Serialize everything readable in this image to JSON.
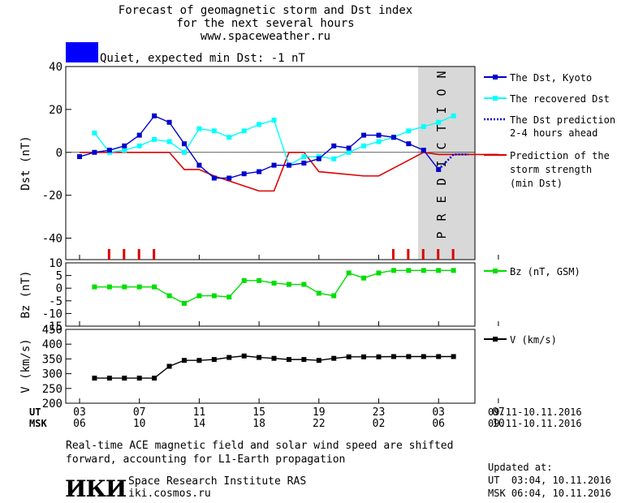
{
  "header": {
    "title_line1": "Forecast of geomagnetic storm and Dst index",
    "title_line2": "for the next several hours",
    "site": "www.spaceweather.ru",
    "status": "Quiet, expected min Dst: -1 nT",
    "status_color": "#0000ff"
  },
  "prediction_label": "PREDICTION",
  "colors": {
    "dst_kyoto": "#0000cc",
    "dst_recovered": "#00ffff",
    "dst_prediction": "#0000cc",
    "storm_strength": "#dd0000",
    "bz": "#00dd00",
    "v": "#000000",
    "prediction_band": "#d8d8d8"
  },
  "legend": {
    "dst_kyoto": "The Dst, Kyoto",
    "dst_recovered": "The recovered Dst",
    "dst_prediction_1": "The Dst prediction",
    "dst_prediction_2": "2-4 hours ahead",
    "storm_1": "Prediction of the",
    "storm_2": "storm strength",
    "storm_3": "(min Dst)",
    "bz": "Bz (nT, GSM)",
    "v": "V (km/s)"
  },
  "x_axis": {
    "ut_label": "UT",
    "msk_label": "MSK",
    "ut_ticks": [
      "03",
      "07",
      "11",
      "15",
      "19",
      "23",
      "03",
      "07"
    ],
    "msk_ticks": [
      "06",
      "10",
      "14",
      "18",
      "22",
      "02",
      "06",
      "10"
    ],
    "ut_range": "09.11-10.11.2016",
    "msk_range": "09.11-10.11.2016"
  },
  "footer": {
    "note_1": "Real-time ACE magnetic field and solar wind speed are shifted",
    "note_2": "forward, accounting for L1-Earth propagation",
    "logo": "ИКИ",
    "institute": "Space Research Institute RAS",
    "institute_url": "iki.cosmos.ru",
    "updated_label": "Updated at:",
    "updated_ut": "UT  03:04, 10.11.2016",
    "updated_msk": "MSK 06:04, 10.11.2016"
  },
  "chart_data": [
    {
      "type": "line",
      "ylabel": "Dst (nT)",
      "ylim": [
        -50,
        40
      ],
      "yticks": [
        40,
        20,
        0,
        -20,
        -40
      ],
      "xlim_hours": [
        3,
        31
      ],
      "prediction_region_hours": [
        27.2,
        31
      ],
      "series": [
        {
          "name": "The Dst, Kyoto",
          "x": [
            3,
            4,
            5,
            6,
            7,
            8,
            9,
            10,
            11,
            12,
            13,
            14,
            15,
            16,
            17,
            18,
            19,
            20,
            21,
            22,
            23,
            24,
            25,
            26,
            27
          ],
          "y": [
            -2,
            0,
            1,
            3,
            8,
            17,
            14,
            4,
            -6,
            -12,
            -12,
            -10,
            -9,
            -6,
            -6,
            -5,
            -3,
            3,
            2,
            8,
            8,
            7,
            4,
            1,
            -8
          ]
        },
        {
          "name": "The recovered Dst",
          "x": [
            4,
            5,
            6,
            7,
            8,
            9,
            10,
            11,
            12,
            13,
            14,
            15,
            16,
            17,
            18,
            19,
            20,
            21,
            22,
            23,
            24,
            25,
            26,
            27,
            28
          ],
          "y": [
            9,
            0,
            1,
            3,
            6,
            5,
            0,
            11,
            10,
            7,
            10,
            13,
            15,
            -6,
            -2,
            -2,
            -3,
            0,
            3,
            5,
            7,
            10,
            12,
            14,
            17
          ]
        },
        {
          "name": "The Dst prediction",
          "x": [
            27,
            28,
            29
          ],
          "y": [
            -8,
            -1,
            -1
          ]
        },
        {
          "name": "Prediction of the storm strength",
          "x": [
            3,
            9,
            10,
            11,
            12,
            15,
            16,
            17,
            18,
            19,
            22,
            23,
            26,
            27,
            31
          ],
          "y": [
            0,
            0,
            -8,
            -8,
            -11,
            -18,
            -18,
            0,
            0,
            -9,
            -11,
            -11,
            0,
            -1,
            -1
          ]
        }
      ],
      "storm_markers_hours": [
        5,
        6,
        7,
        8,
        24,
        25,
        26,
        27,
        28
      ]
    },
    {
      "type": "line",
      "ylabel": "Bz (nT)",
      "ylim": [
        -15,
        10
      ],
      "yticks": [
        10,
        5,
        0,
        -5,
        -10,
        -15
      ],
      "series": [
        {
          "name": "Bz (nT, GSM)",
          "x": [
            4,
            5,
            6,
            7,
            8,
            9,
            10,
            11,
            12,
            13,
            14,
            15,
            16,
            17,
            18,
            19,
            20,
            21,
            22,
            23,
            24,
            25,
            26,
            27,
            28
          ],
          "y": [
            0.5,
            0.5,
            0.5,
            0.5,
            0.5,
            -3,
            -6,
            -3,
            -3,
            -3.5,
            3,
            3,
            2,
            1.5,
            1.5,
            -2,
            -3,
            6,
            4,
            6,
            7,
            7,
            7,
            7,
            7
          ]
        }
      ]
    },
    {
      "type": "line",
      "ylabel": "V (km/s)",
      "ylim": [
        200,
        450
      ],
      "yticks": [
        450,
        400,
        350,
        300,
        250,
        200
      ],
      "series": [
        {
          "name": "V (km/s)",
          "x": [
            4,
            5,
            6,
            7,
            8,
            9,
            10,
            11,
            12,
            13,
            14,
            15,
            16,
            17,
            18,
            19,
            20,
            21,
            22,
            23,
            24,
            25,
            26,
            27,
            28
          ],
          "y": [
            285,
            285,
            285,
            285,
            285,
            325,
            345,
            345,
            348,
            355,
            360,
            355,
            352,
            348,
            348,
            345,
            352,
            357,
            357,
            357,
            358,
            358,
            358,
            358,
            358
          ]
        }
      ]
    }
  ]
}
